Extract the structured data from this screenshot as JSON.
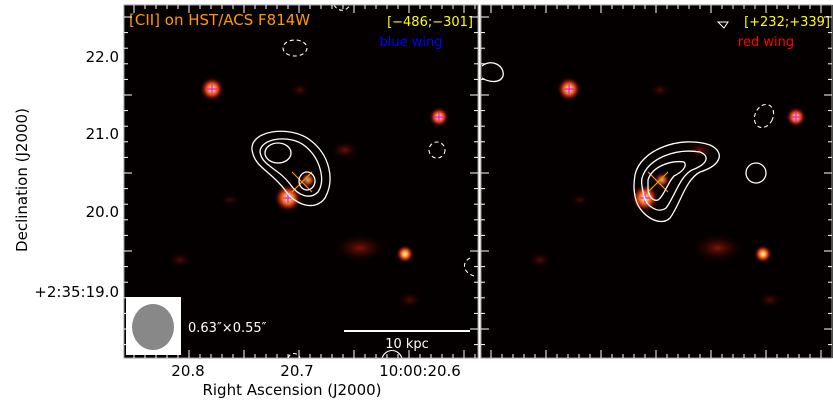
{
  "chart_data": {
    "type": "image-contour",
    "title": "[CII] on HST/ACS F814W",
    "xlabel": "Right Ascension (J2000)",
    "ylabel": "Declination (J2000)",
    "x_ticks": [
      "20.8",
      "20.7",
      "10:00:20.6"
    ],
    "y_ticks": [
      "22.0",
      "21.0",
      "20.0",
      "+2:35:19.0"
    ],
    "panels": [
      {
        "name": "blue wing",
        "velocity_range": "[−486;−301]",
        "label_color": "#0000ff"
      },
      {
        "name": "red wing",
        "velocity_range": "[+232;+339]",
        "label_color": "#ff0000"
      }
    ],
    "beam_label": "0.63″×0.55″",
    "scalebar_label": "10 kpc",
    "colors": {
      "title": "#ff9900",
      "velocity": "#ffff00",
      "background": "#000000"
    }
  }
}
